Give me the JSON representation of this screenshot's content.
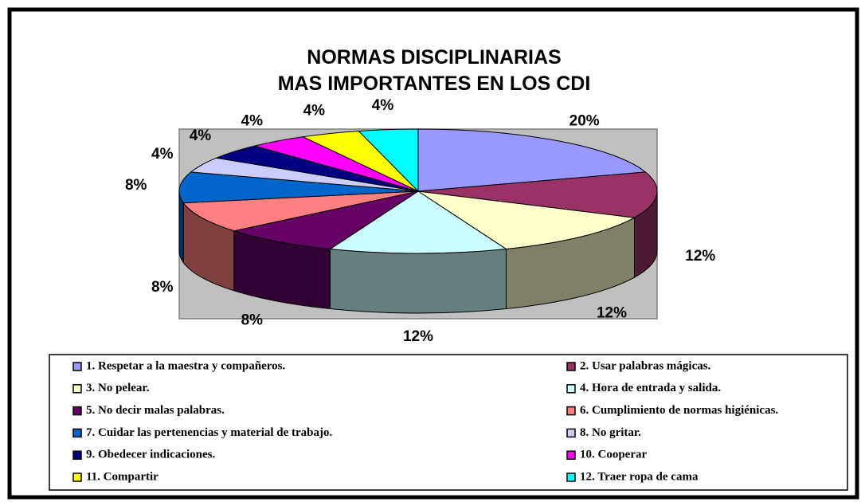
{
  "chart_data": {
    "type": "pie",
    "title": [
      "NORMAS DISCIPLINARIAS",
      "MAS IMPORTANTES EN LOS CDI"
    ],
    "categories": [
      "1. Respetar  a la maestra y compañeros.",
      "2. Usar palabras mágicas.",
      "3. No pelear.",
      "4. Hora de entrada y salida.",
      "5. No decir malas palabras.",
      "6. Cumplimiento de normas higiénicas.",
      "7. Cuidar las pertenencias y material de trabajo.",
      "8. No gritar.",
      "9. Obedecer indicaciones.",
      "10. Cooperar",
      "11. Compartir",
      "12. Traer ropa de cama"
    ],
    "values": [
      20,
      12,
      12,
      12,
      8,
      8,
      8,
      4,
      4,
      4,
      4,
      4
    ],
    "value_labels": [
      "20%",
      "12%",
      "12%",
      "12%",
      "8%",
      "8%",
      "8%",
      "4%",
      "4%",
      "4%",
      "4%",
      "4%"
    ],
    "colors": [
      "#9999ff",
      "#993366",
      "#ffffcc",
      "#ccffff",
      "#660066",
      "#ff8080",
      "#0066cc",
      "#ccccff",
      "#000080",
      "#ff00ff",
      "#ffff00",
      "#00ffff"
    ]
  }
}
